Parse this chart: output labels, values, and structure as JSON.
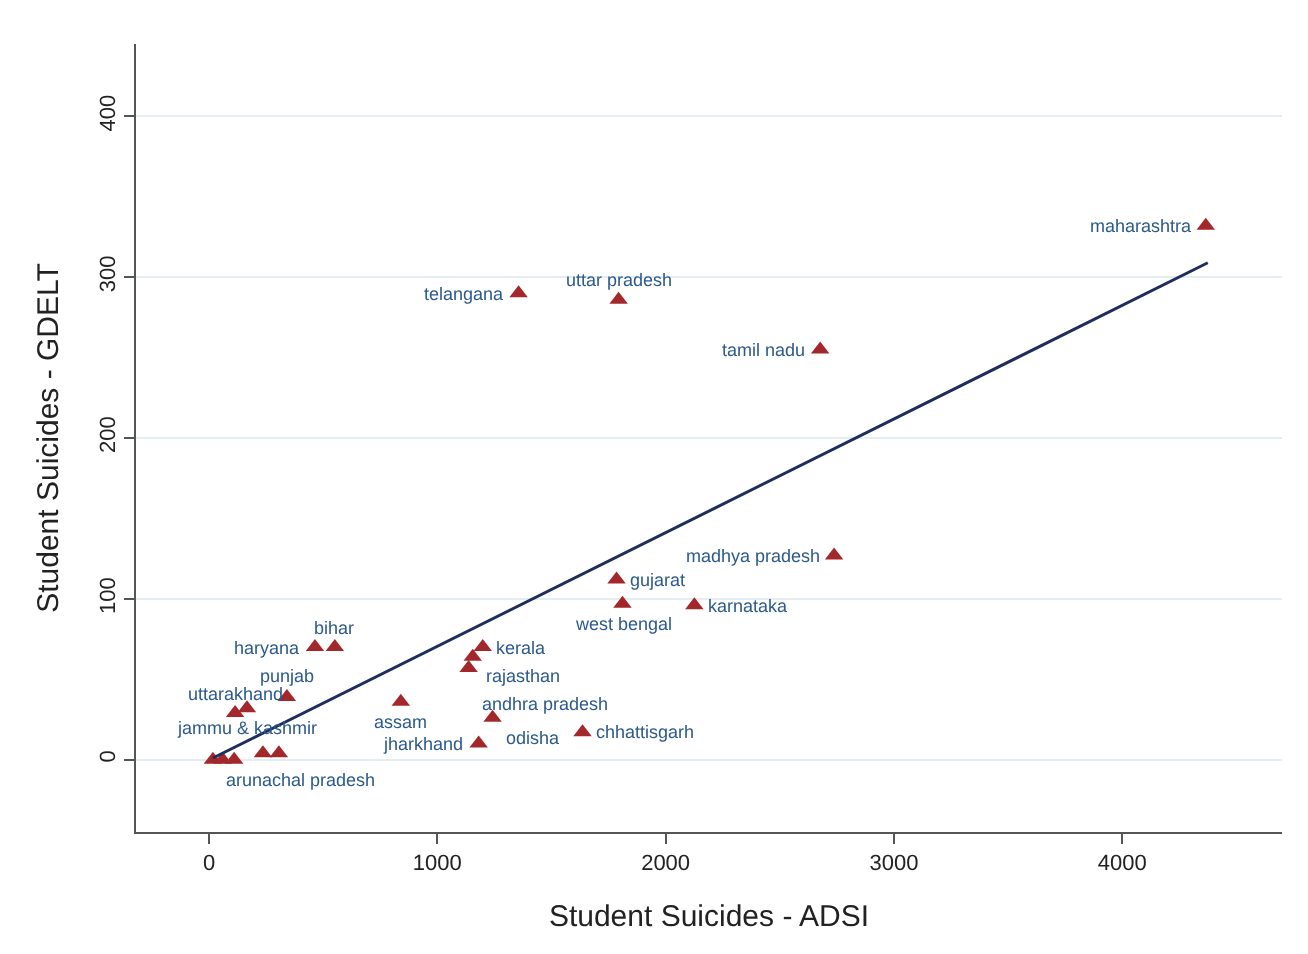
{
  "chart_data": {
    "type": "scatter",
    "xlabel": "Student Suicides - ADSI",
    "ylabel": "Student Suicides - GDELT",
    "xlim": [
      -320,
      4700
    ],
    "xticks": [
      0,
      1000,
      2000,
      3000,
      4000
    ],
    "ylim": [
      -45,
      445
    ],
    "yticks": [
      0,
      100,
      200,
      300,
      400
    ],
    "grid": "y",
    "series": [
      {
        "color": "#a3282c",
        "marker": "triangle",
        "x": [
          4366,
          2677,
          1794,
          1356,
          2738,
          1785,
          1811,
          2126,
          1199,
          1155,
          1137,
          464,
          551,
          840,
          341,
          166,
          114,
          1242,
          1636,
          1181,
          17,
          236,
          306,
          60,
          110
        ],
        "values": [
          332,
          255,
          286,
          290,
          127,
          112,
          97,
          96,
          70,
          64,
          57,
          70,
          70,
          36,
          39,
          32,
          29,
          26,
          17,
          10,
          0,
          4,
          4,
          0,
          0
        ],
        "value_labels": [
          "maharashtra",
          "tamil nadu",
          "uttar pradesh",
          "telangana",
          "madhya pradesh",
          "gujarat",
          "west bengal",
          "karnataka",
          "kerala",
          "rajasthan",
          "andhra pradesh",
          "haryana",
          "bihar",
          "assam",
          "punjab",
          "jammu & kashmir",
          "uttarakhand",
          "odisha",
          "chhattisgarh",
          "jharkhand",
          "arunachal pradesh",
          null,
          null,
          null,
          null
        ]
      },
      {
        "type": "line",
        "color": "#1f2d5c",
        "x": [
          17,
          4375
        ],
        "values": [
          1,
          309
        ]
      }
    ]
  }
}
